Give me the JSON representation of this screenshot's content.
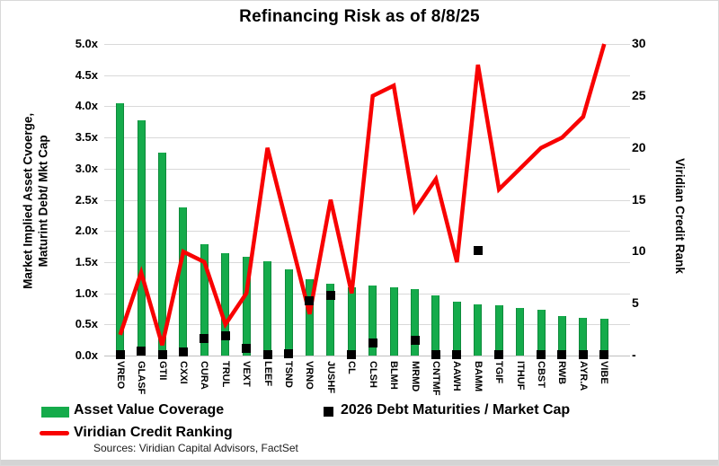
{
  "title": "Refinancing Risk as of 8/8/25",
  "source_note": "Sources: Viridian Capital Advisors, FactSet",
  "colors": {
    "bar_green": "#15ab4b",
    "line_red": "#f80202",
    "marker_black": "#000000",
    "gridline_gray": "#d9d9d9"
  },
  "legend": {
    "asset_value_coverage": "Asset Value Coverage",
    "credit_ranking": "Viridian Credit Ranking",
    "debt_maturities": "2026 Debt Maturities / Market Cap"
  },
  "y_axis_left": {
    "title_line1": "Market Implied Asset Cvoerge,",
    "title_line2": "Maturint Debt/ Mkt Cap",
    "tick_labels": [
      "5.0x",
      "4.5x",
      "4.0x",
      "3.5x",
      "3.0x",
      "2.5x",
      "2.0x",
      "1.5x",
      "1.0x",
      "0.5x",
      "0.0x"
    ],
    "tick_values": [
      5,
      4.5,
      4,
      3.5,
      3,
      2.5,
      2,
      1.5,
      1,
      0.5,
      0
    ],
    "range": [
      0,
      5
    ]
  },
  "y_axis_right": {
    "title": "Viridian Credit Rank",
    "tick_labels": [
      "30",
      "25",
      "20",
      "15",
      "10",
      "5",
      "-"
    ],
    "tick_values": [
      30,
      25,
      20,
      15,
      10,
      5,
      0
    ],
    "range": [
      0,
      30
    ]
  },
  "chart_data": {
    "type": "combo (bar + scatter on left axis, line on right axis)",
    "title": "Refinancing Risk as of 8/8/25",
    "categories": [
      "VREO",
      "GLASF",
      "GTII",
      "CXXI",
      "CURA",
      "TRUL",
      "VEXT",
      "LEEF",
      "TSND",
      "VRNO",
      "JUSHF",
      "CL",
      "CLSH",
      "BLMH",
      "MRMD",
      "CNTMF",
      "AAWH",
      "BAMM",
      "TGIF",
      "ITHUF",
      "CBST",
      "RWB",
      "AYR.A",
      "VIBE"
    ],
    "series": [
      {
        "name": "Asset Value Coverage",
        "type": "bar",
        "axis": "left",
        "values": [
          4.05,
          3.77,
          3.25,
          2.38,
          1.79,
          1.64,
          1.59,
          1.51,
          1.38,
          1.22,
          1.15,
          1.1,
          1.12,
          1.1,
          1.06,
          0.96,
          0.86,
          0.82,
          0.8,
          0.76,
          0.73,
          0.63,
          0.6,
          0.59
        ]
      },
      {
        "name": "2026 Debt Maturities / Market Cap",
        "type": "scatter",
        "axis": "left",
        "values": [
          0.02,
          0.07,
          0.02,
          0.06,
          0.27,
          0.31,
          0.12,
          0.02,
          0.03,
          0.88,
          0.97,
          0.02,
          0.2,
          null,
          0.25,
          0.01,
          0.01,
          1.68,
          0.01,
          null,
          0.01,
          0.01,
          0.01,
          0.01
        ]
      },
      {
        "name": "Viridian Credit Ranking",
        "type": "line",
        "axis": "right",
        "values": [
          2,
          8,
          1,
          10,
          9,
          3,
          6,
          20,
          12,
          4,
          15,
          6,
          25,
          26,
          14,
          17,
          9,
          28,
          16,
          18,
          20,
          21,
          23,
          30
        ]
      }
    ],
    "y_left_range": [
      0,
      5
    ],
    "y_right_range": [
      0,
      30
    ],
    "gridlines": "horizontal at every 0.5 of left axis",
    "legend_position": "bottom-left"
  }
}
